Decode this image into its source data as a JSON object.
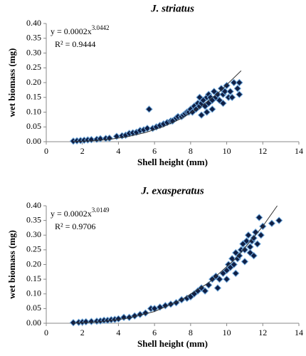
{
  "chart_data": [
    {
      "type": "scatter",
      "title": "J. striatus",
      "x_label": "Shell height (mm)",
      "y_label": "wet biomass (mg)",
      "equation": "y = 0.0002x",
      "equation_exponent": "3.0442",
      "r_squared": "R² = 0.9444",
      "color": "#0f1f45",
      "edge_color": "#6fa8dc",
      "line_color": "#333333",
      "xlim": [
        0,
        14
      ],
      "xticks": [
        0,
        2,
        4,
        6,
        8,
        10,
        12,
        14
      ],
      "ylim": [
        0,
        0.4
      ],
      "yticks": [
        {
          "value": 0,
          "label": "0.00"
        },
        0.05,
        {
          "value": 0.1,
          "label": "0.10"
        },
        0.15,
        {
          "value": 0.2,
          "label": "0.20"
        },
        0.25,
        {
          "value": 0.3,
          "label": "0.30"
        },
        0.35,
        {
          "value": 0.4,
          "label": "0.40"
        }
      ],
      "x": [
        1.5,
        1.7,
        1.9,
        2.1,
        2.3,
        2.5,
        2.8,
        3.0,
        3.3,
        3.5,
        3.9,
        4.2,
        4.4,
        4.6,
        4.8,
        5.0,
        5.2,
        5.4,
        5.6,
        5.7,
        5.9,
        6.1,
        6.3,
        6.5,
        6.7,
        6.9,
        7.0,
        7.2,
        7.3,
        7.5,
        7.6,
        7.7,
        7.8,
        7.9,
        8.0,
        8.1,
        8.2,
        8.3,
        8.4,
        8.5,
        8.5,
        8.6,
        8.7,
        8.8,
        8.9,
        9.0,
        9.0,
        9.1,
        9.2,
        9.3,
        9.4,
        9.5,
        9.6,
        9.7,
        9.8,
        9.9,
        10.0,
        10.1,
        10.2,
        10.4,
        10.6,
        10.7,
        10.7,
        8.6,
        9.2,
        9.8,
        8.9,
        10.3
      ],
      "values": [
        0.002,
        0.003,
        0.004,
        0.005,
        0.006,
        0.007,
        0.008,
        0.01,
        0.011,
        0.012,
        0.018,
        0.02,
        0.022,
        0.028,
        0.03,
        0.032,
        0.038,
        0.04,
        0.045,
        0.11,
        0.045,
        0.05,
        0.055,
        0.06,
        0.065,
        0.07,
        0.07,
        0.08,
        0.085,
        0.085,
        0.09,
        0.095,
        0.1,
        0.1,
        0.11,
        0.1,
        0.12,
        0.11,
        0.13,
        0.12,
        0.15,
        0.13,
        0.14,
        0.12,
        0.15,
        0.16,
        0.13,
        0.15,
        0.14,
        0.17,
        0.15,
        0.16,
        0.14,
        0.18,
        0.16,
        0.17,
        0.19,
        0.15,
        0.17,
        0.2,
        0.18,
        0.16,
        0.2,
        0.09,
        0.11,
        0.13,
        0.1,
        0.15
      ],
      "trendline": {
        "x": [
          1.5,
          2.5,
          3.5,
          4.5,
          5.5,
          6.5,
          7.5,
          8.5,
          9.5,
          10.8
        ],
        "values": [
          0.0006,
          0.0028,
          0.0078,
          0.0168,
          0.031,
          0.051,
          0.079,
          0.116,
          0.163,
          0.24
        ]
      }
    },
    {
      "type": "scatter",
      "title": "J. exasperatus",
      "x_label": "Shell height (mm)",
      "y_label": "wet biomass (mg)",
      "equation": "y = 0.0002x",
      "equation_exponent": "3.0149",
      "r_squared": "R² = 0.9706",
      "color": "#0f1f45",
      "edge_color": "#6fa8dc",
      "line_color": "#333333",
      "xlim": [
        0,
        14
      ],
      "xticks": [
        0,
        2,
        4,
        6,
        8,
        10,
        12,
        14
      ],
      "ylim": [
        0,
        0.4
      ],
      "yticks": [
        {
          "value": 0,
          "label": "0.00"
        },
        0.05,
        {
          "value": 0.1,
          "label": "0.10"
        },
        0.15,
        {
          "value": 0.2,
          "label": "0.20"
        },
        0.25,
        {
          "value": 0.3,
          "label": "0.30"
        },
        0.35,
        {
          "value": 0.4,
          "label": "0.40"
        }
      ],
      "x": [
        1.5,
        1.8,
        2.0,
        2.2,
        2.5,
        2.8,
        3.0,
        3.2,
        3.4,
        3.6,
        3.8,
        4.0,
        4.3,
        4.6,
        4.9,
        5.2,
        5.5,
        5.8,
        6.0,
        6.3,
        6.6,
        6.9,
        7.2,
        7.5,
        7.8,
        8.0,
        8.2,
        8.4,
        8.6,
        8.8,
        9.0,
        9.2,
        9.4,
        9.6,
        9.8,
        10.0,
        10.1,
        10.2,
        10.3,
        10.4,
        10.5,
        10.6,
        10.7,
        10.8,
        10.9,
        11.0,
        11.1,
        11.2,
        11.3,
        11.4,
        11.5,
        11.6,
        11.7,
        11.8,
        11.9,
        12.0,
        10.0,
        10.5,
        11.0,
        11.5,
        12.5,
        12.9,
        9.5,
        11.3
      ],
      "values": [
        0.002,
        0.003,
        0.004,
        0.005,
        0.006,
        0.007,
        0.008,
        0.01,
        0.01,
        0.012,
        0.013,
        0.015,
        0.02,
        0.02,
        0.025,
        0.03,
        0.035,
        0.05,
        0.05,
        0.055,
        0.06,
        0.065,
        0.07,
        0.08,
        0.085,
        0.09,
        0.1,
        0.11,
        0.12,
        0.11,
        0.13,
        0.15,
        0.16,
        0.15,
        0.17,
        0.18,
        0.2,
        0.19,
        0.22,
        0.2,
        0.24,
        0.22,
        0.23,
        0.25,
        0.27,
        0.25,
        0.28,
        0.3,
        0.26,
        0.28,
        0.29,
        0.31,
        0.27,
        0.36,
        0.3,
        0.33,
        0.15,
        0.17,
        0.21,
        0.23,
        0.34,
        0.35,
        0.12,
        0.24
      ],
      "trendline": {
        "x": [
          1.5,
          3,
          4.5,
          6,
          7.5,
          9,
          10.5,
          12,
          12.8
        ],
        "values": [
          0.0006,
          0.005,
          0.017,
          0.04,
          0.08,
          0.138,
          0.22,
          0.33,
          0.4
        ]
      }
    }
  ]
}
